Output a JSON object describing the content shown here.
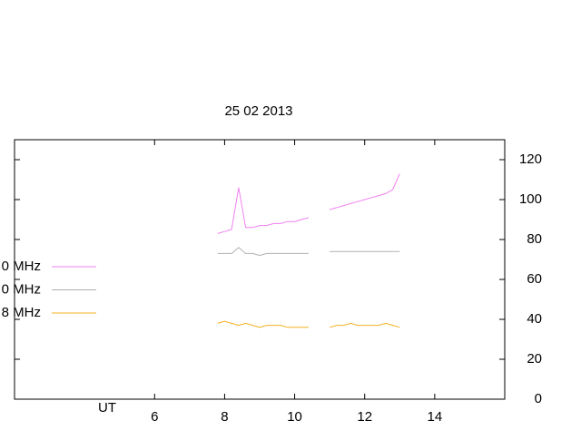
{
  "chart_data": {
    "type": "line",
    "title": "25 02 2013",
    "x_label": "UT",
    "x": [
      7.8,
      8.0,
      8.2,
      8.4,
      8.6,
      8.8,
      9.0,
      9.2,
      9.4,
      9.6,
      9.8,
      10.0,
      10.2,
      10.4,
      10.6,
      10.8,
      11.0,
      11.2,
      11.4,
      11.6,
      11.8,
      12.0,
      12.2,
      12.4,
      12.6,
      12.8,
      13.0
    ],
    "series": [
      {
        "name": "0 MHz",
        "color": "#f080f0",
        "values": [
          83,
          84,
          85,
          106,
          86,
          86,
          87,
          87,
          88,
          88,
          89,
          89,
          90,
          91,
          null,
          null,
          95,
          96,
          97,
          98,
          99,
          100,
          101,
          102,
          103,
          105,
          113
        ]
      },
      {
        "name": "0 MHz",
        "color": "#b0b0b0",
        "values": [
          73,
          73,
          73,
          76,
          73,
          73,
          72,
          73,
          73,
          73,
          73,
          73,
          73,
          73,
          null,
          null,
          74,
          74,
          74,
          74,
          74,
          74,
          74,
          74,
          74,
          74,
          74
        ]
      },
      {
        "name": "8 MHz",
        "color": "#f5b020",
        "values": [
          38,
          39,
          38,
          37,
          38,
          37,
          36,
          37,
          37,
          37,
          36,
          36,
          36,
          36,
          null,
          null,
          36,
          37,
          37,
          38,
          37,
          37,
          37,
          37,
          38,
          37,
          36
        ]
      }
    ],
    "xlim": [
      2,
      16
    ],
    "xticks": [
      6,
      8,
      10,
      12,
      14
    ],
    "ylim": [
      0,
      130
    ],
    "yticks": [
      0,
      20,
      40,
      60,
      80,
      100,
      120
    ],
    "y_axis_side": "right"
  }
}
